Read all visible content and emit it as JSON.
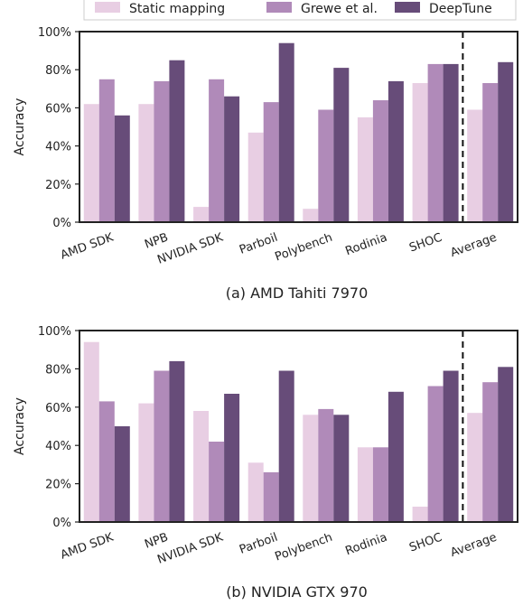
{
  "legend": {
    "items": [
      {
        "label": "Static mapping",
        "color": "#e8cee3"
      },
      {
        "label": "Grewe et al.",
        "color": "#b08ab9"
      },
      {
        "label": "DeepTune",
        "color": "#674c79"
      }
    ]
  },
  "chart_data": [
    {
      "type": "bar",
      "caption": "(a) AMD Tahiti 7970",
      "ylabel": "Accuracy",
      "ylim": [
        0,
        100
      ],
      "yticks": [
        "0%",
        "20%",
        "40%",
        "60%",
        "80%",
        "100%"
      ],
      "categories": [
        "AMD SDK",
        "NPB",
        "NVIDIA SDK",
        "Parboil",
        "Polybench",
        "Rodinia",
        "SHOC",
        "Average"
      ],
      "series": [
        {
          "name": "Static mapping",
          "values": [
            62,
            62,
            8,
            47,
            7,
            55,
            73,
            59
          ]
        },
        {
          "name": "Grewe et al.",
          "values": [
            75,
            74,
            75,
            63,
            59,
            64,
            83,
            73
          ]
        },
        {
          "name": "DeepTune",
          "values": [
            56,
            85,
            66,
            94,
            81,
            74,
            83,
            84
          ]
        }
      ]
    },
    {
      "type": "bar",
      "caption": "(b) NVIDIA GTX 970",
      "ylabel": "Accuracy",
      "ylim": [
        0,
        100
      ],
      "yticks": [
        "0%",
        "20%",
        "40%",
        "60%",
        "80%",
        "100%"
      ],
      "categories": [
        "AMD SDK",
        "NPB",
        "NVIDIA SDK",
        "Parboil",
        "Polybench",
        "Rodinia",
        "SHOC",
        "Average"
      ],
      "series": [
        {
          "name": "Static mapping",
          "values": [
            94,
            62,
            58,
            31,
            56,
            39,
            8,
            57
          ]
        },
        {
          "name": "Grewe et al.",
          "values": [
            63,
            79,
            42,
            26,
            59,
            39,
            71,
            73
          ]
        },
        {
          "name": "DeepTune",
          "values": [
            50,
            84,
            67,
            79,
            56,
            68,
            79,
            81
          ]
        }
      ]
    }
  ]
}
